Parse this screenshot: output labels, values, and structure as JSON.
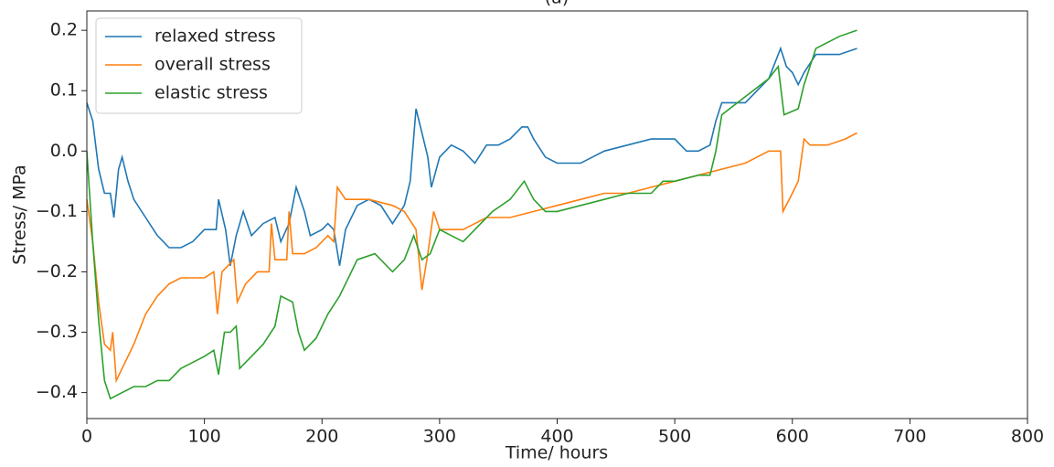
{
  "chart_data": {
    "type": "line",
    "title": "(a)",
    "x_label": "Time/ hours",
    "y_label": "Stress/ MPa",
    "xlim": [
      0,
      800
    ],
    "ylim": [
      -0.443,
      0.232
    ],
    "xticks": [
      0,
      100,
      200,
      300,
      400,
      500,
      600,
      700,
      800
    ],
    "yticks": [
      {
        "value": -0.4,
        "label": "−0.4"
      },
      {
        "value": -0.3,
        "label": "−0.3"
      },
      {
        "value": -0.2,
        "label": "−0.2"
      },
      {
        "value": -0.1,
        "label": "−0.1"
      },
      {
        "value": 0,
        "label": "0.0"
      },
      0.1,
      0.2
    ],
    "legend": "upper left",
    "series": [
      {
        "name": "relaxed stress",
        "color": "#1f77b4",
        "x": [
          0,
          5,
          10,
          15,
          20,
          23,
          27,
          30,
          35,
          40,
          50,
          60,
          70,
          80,
          90,
          100,
          110,
          112,
          118,
          122,
          127,
          133,
          140,
          150,
          160,
          165,
          172,
          178,
          185,
          190,
          200,
          205,
          210,
          215,
          220,
          230,
          240,
          250,
          260,
          270,
          275,
          280,
          285,
          290,
          293,
          300,
          310,
          320,
          330,
          340,
          350,
          360,
          370,
          375,
          380,
          390,
          400,
          420,
          440,
          460,
          480,
          500,
          510,
          520,
          530,
          535,
          540,
          560,
          580,
          590,
          595,
          600,
          605,
          610,
          620,
          640,
          655
        ],
        "values": [
          0.08,
          0.05,
          -0.03,
          -0.07,
          -0.07,
          -0.11,
          -0.03,
          -0.01,
          -0.05,
          -0.08,
          -0.11,
          -0.14,
          -0.16,
          -0.16,
          -0.15,
          -0.13,
          -0.13,
          -0.08,
          -0.13,
          -0.19,
          -0.14,
          -0.1,
          -0.14,
          -0.12,
          -0.11,
          -0.15,
          -0.12,
          -0.06,
          -0.1,
          -0.14,
          -0.13,
          -0.12,
          -0.13,
          -0.19,
          -0.13,
          -0.09,
          -0.08,
          -0.09,
          -0.12,
          -0.09,
          -0.05,
          0.07,
          0.03,
          -0.01,
          -0.06,
          -0.01,
          0.01,
          0.0,
          -0.02,
          0.01,
          0.01,
          0.02,
          0.04,
          0.04,
          0.02,
          -0.01,
          -0.02,
          -0.02,
          0.0,
          0.01,
          0.02,
          0.02,
          0.0,
          0.0,
          0.01,
          0.05,
          0.08,
          0.08,
          0.12,
          0.17,
          0.14,
          0.13,
          0.11,
          0.13,
          0.16,
          0.16,
          0.17
        ]
      },
      {
        "name": "overall stress",
        "color": "#ff7f0e",
        "x": [
          0,
          5,
          10,
          15,
          20,
          22,
          25,
          30,
          40,
          50,
          60,
          70,
          80,
          90,
          100,
          108,
          111,
          115,
          120,
          125,
          128,
          135,
          145,
          155,
          157,
          160,
          170,
          172,
          175,
          185,
          195,
          205,
          210,
          213,
          220,
          240,
          260,
          270,
          280,
          285,
          290,
          295,
          300,
          320,
          340,
          360,
          380,
          400,
          420,
          440,
          460,
          480,
          500,
          520,
          540,
          560,
          580,
          590,
          592,
          600,
          605,
          610,
          615,
          630,
          645,
          655
        ],
        "values": [
          -0.08,
          -0.15,
          -0.25,
          -0.32,
          -0.33,
          -0.3,
          -0.38,
          -0.36,
          -0.32,
          -0.27,
          -0.24,
          -0.22,
          -0.21,
          -0.21,
          -0.21,
          -0.2,
          -0.27,
          -0.2,
          -0.19,
          -0.18,
          -0.25,
          -0.22,
          -0.2,
          -0.2,
          -0.12,
          -0.18,
          -0.18,
          -0.1,
          -0.17,
          -0.17,
          -0.16,
          -0.14,
          -0.15,
          -0.06,
          -0.08,
          -0.08,
          -0.09,
          -0.1,
          -0.13,
          -0.23,
          -0.17,
          -0.1,
          -0.13,
          -0.13,
          -0.11,
          -0.11,
          -0.1,
          -0.09,
          -0.08,
          -0.07,
          -0.07,
          -0.06,
          -0.05,
          -0.04,
          -0.03,
          -0.02,
          0.0,
          0.0,
          -0.1,
          -0.07,
          -0.05,
          0.02,
          0.01,
          0.01,
          0.02,
          0.03
        ]
      },
      {
        "name": "elastic stress",
        "color": "#2ca02c",
        "x": [
          0,
          5,
          10,
          15,
          20,
          30,
          40,
          50,
          60,
          70,
          80,
          90,
          100,
          108,
          112,
          117,
          122,
          127,
          130,
          140,
          150,
          160,
          165,
          175,
          180,
          185,
          195,
          205,
          215,
          230,
          245,
          260,
          270,
          278,
          285,
          292,
          300,
          310,
          320,
          330,
          345,
          360,
          372,
          380,
          390,
          400,
          420,
          440,
          460,
          480,
          490,
          500,
          520,
          530,
          535,
          540,
          560,
          580,
          588,
          593,
          605,
          610,
          620,
          640,
          655
        ],
        "values": [
          0.0,
          -0.15,
          -0.28,
          -0.38,
          -0.41,
          -0.4,
          -0.39,
          -0.39,
          -0.38,
          -0.38,
          -0.36,
          -0.35,
          -0.34,
          -0.33,
          -0.37,
          -0.3,
          -0.3,
          -0.29,
          -0.36,
          -0.34,
          -0.32,
          -0.29,
          -0.24,
          -0.25,
          -0.3,
          -0.33,
          -0.31,
          -0.27,
          -0.24,
          -0.18,
          -0.17,
          -0.2,
          -0.18,
          -0.14,
          -0.18,
          -0.17,
          -0.13,
          -0.14,
          -0.15,
          -0.13,
          -0.1,
          -0.08,
          -0.05,
          -0.08,
          -0.1,
          -0.1,
          -0.09,
          -0.08,
          -0.07,
          -0.07,
          -0.05,
          -0.05,
          -0.04,
          -0.04,
          0.0,
          0.06,
          0.09,
          0.12,
          0.14,
          0.06,
          0.07,
          0.11,
          0.17,
          0.19,
          0.2
        ]
      }
    ]
  }
}
